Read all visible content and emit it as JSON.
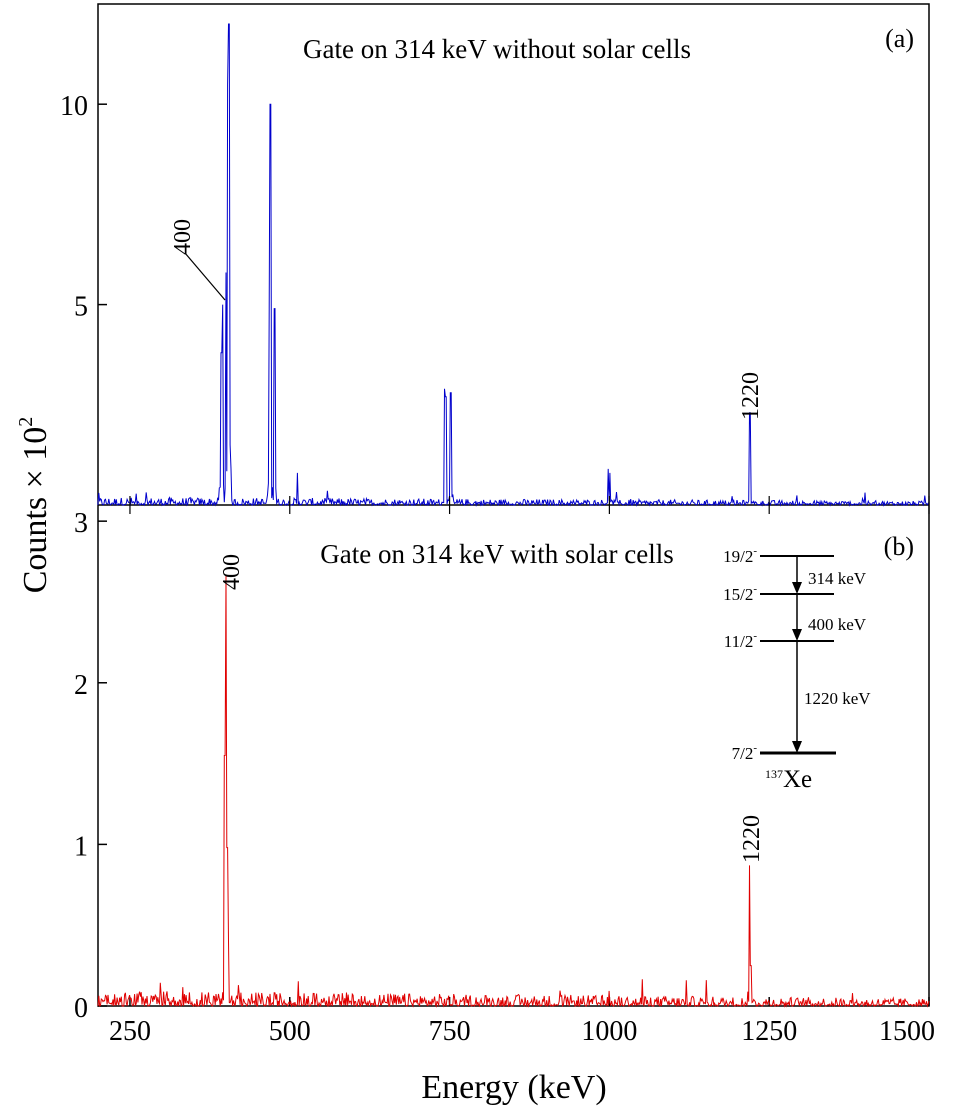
{
  "figure": {
    "ylabel_text": "Counts × 10",
    "ylabel_exponent": "2",
    "xlabel": "Energy (keV)"
  },
  "chart_data": [
    {
      "type": "line",
      "panel": "(a)",
      "title": "Gate on 314 keV without solar cells",
      "color": "#0000cc",
      "xlim": [
        200,
        1500
      ],
      "ylim": [
        0,
        12.5
      ],
      "yticks": [
        5,
        10
      ],
      "ytick_labels": [
        "5",
        "10"
      ],
      "xlabel": "Energy (keV)",
      "ylabel": "Counts × 10^2",
      "peaks": [
        {
          "x": 393,
          "y": 3.8
        },
        {
          "x": 395,
          "y": 5.0
        },
        {
          "x": 400,
          "y": 5.8
        },
        {
          "x": 403,
          "y": 10.5
        },
        {
          "x": 405,
          "y": 12.0
        },
        {
          "x": 407,
          "y": 1.5
        },
        {
          "x": 468,
          "y": 4.9
        },
        {
          "x": 470,
          "y": 10.0
        },
        {
          "x": 476,
          "y": 4.9
        },
        {
          "x": 512,
          "y": 0.8
        },
        {
          "x": 742,
          "y": 2.9
        },
        {
          "x": 744,
          "y": 2.7
        },
        {
          "x": 752,
          "y": 2.8
        },
        {
          "x": 998,
          "y": 0.9
        },
        {
          "x": 1001,
          "y": 0.8
        },
        {
          "x": 1220,
          "y": 2.3
        }
      ],
      "noise_level": 0.25,
      "annotations": [
        {
          "text": "400",
          "x": 400,
          "y": 5.8,
          "style": "leader"
        },
        {
          "text": "1220",
          "x": 1220,
          "y": 2.3,
          "style": "above"
        }
      ]
    },
    {
      "type": "line",
      "panel": "(b)",
      "title": "Gate on 314 keV with solar cells",
      "color": "#e00000",
      "xlim": [
        200,
        1500
      ],
      "ylim": [
        0,
        3.1
      ],
      "yticks": [
        0,
        1,
        2,
        3
      ],
      "ytick_labels": [
        "0",
        "1",
        "2",
        "3"
      ],
      "xticks": [
        250,
        500,
        750,
        1000,
        1250,
        1500
      ],
      "xtick_labels": [
        "250",
        "500",
        "750",
        "1000",
        "1250",
        "1500"
      ],
      "xlabel": "Energy (keV)",
      "ylabel": "Counts × 10^2",
      "peaks": [
        {
          "x": 398,
          "y": 1.55
        },
        {
          "x": 400,
          "y": 2.67
        },
        {
          "x": 402,
          "y": 0.98
        },
        {
          "x": 404,
          "y": 0.4
        },
        {
          "x": 1219,
          "y": 0.87
        },
        {
          "x": 1221,
          "y": 0.25
        }
      ],
      "noise_level": 0.12,
      "annotations": [
        {
          "text": "400",
          "x": 400,
          "y": 2.67,
          "style": "above"
        },
        {
          "text": "1220",
          "x": 1220,
          "y": 0.87,
          "style": "above"
        }
      ],
      "level_scheme": {
        "nucleus_mass": "137",
        "nucleus_symbol": "Xe",
        "levels": [
          {
            "spin": "19/2",
            "parity": "-"
          },
          {
            "spin": "15/2",
            "parity": "-"
          },
          {
            "spin": "11/2",
            "parity": "-"
          },
          {
            "spin": "7/2",
            "parity": "-"
          }
        ],
        "transitions": [
          "314 keV",
          "400 keV",
          "1220 keV"
        ]
      }
    }
  ]
}
